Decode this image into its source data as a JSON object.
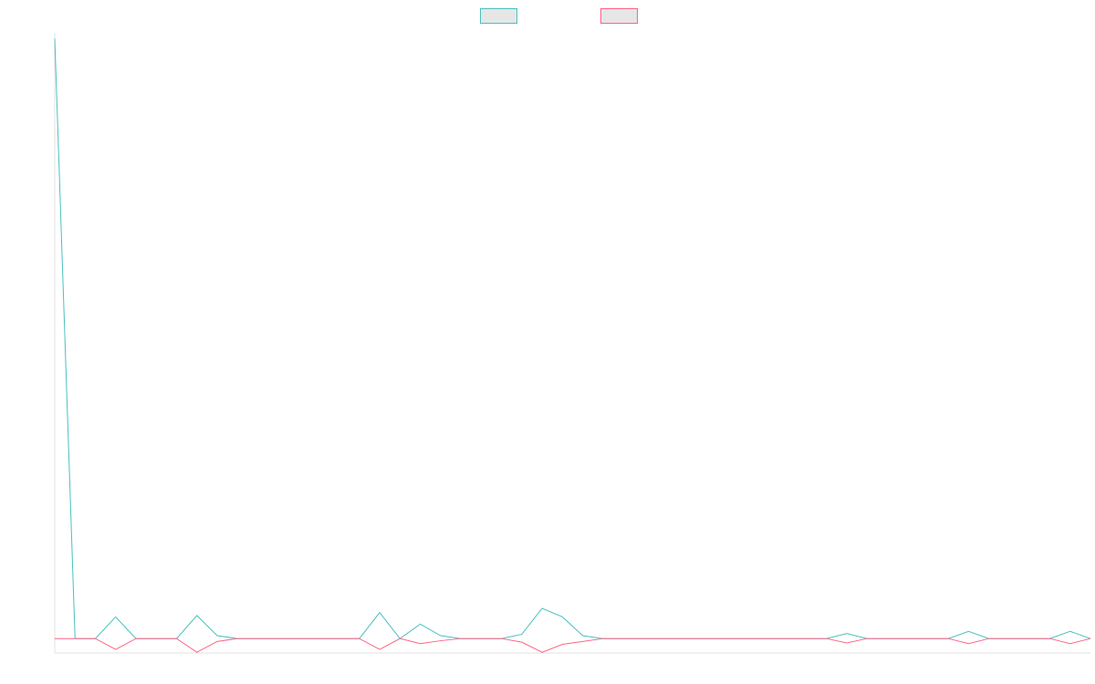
{
  "chart_data": {
    "type": "line",
    "title": "",
    "xlabel": "",
    "ylabel": "",
    "grid": false,
    "legend": "top-center",
    "x": [
      0,
      1,
      2,
      3,
      4,
      5,
      6,
      7,
      8,
      9,
      10,
      11,
      12,
      13,
      14,
      15,
      16,
      17,
      18,
      19,
      20,
      21,
      22,
      23,
      24,
      25,
      26,
      27,
      28,
      29,
      30,
      31,
      32,
      33,
      34,
      35,
      36,
      37,
      38,
      39,
      40,
      41,
      42,
      43,
      44,
      45,
      46,
      47,
      48,
      49,
      50,
      51
    ],
    "ylim": [
      -1.0,
      42.0
    ],
    "series": [
      {
        "name": "",
        "color": "#4bc0c0",
        "fill": "#e6e6e6",
        "values": [
          41.6,
          0,
          0,
          1.5,
          0,
          0,
          0,
          1.6,
          0.2,
          0,
          0,
          0,
          0,
          0,
          0,
          0,
          1.8,
          0,
          1.0,
          0.2,
          0,
          0,
          0,
          0.3,
          2.1,
          1.5,
          0.2,
          0,
          0,
          0,
          0,
          0,
          0,
          0,
          0,
          0,
          0,
          0,
          0,
          0.35,
          0,
          0,
          0,
          0,
          0,
          0.5,
          0,
          0,
          0,
          0,
          0.5,
          0
        ]
      },
      {
        "name": "",
        "color": "#ff6384",
        "fill": "#e6e6e6",
        "values": [
          0,
          0,
          0,
          -0.75,
          0,
          0,
          0,
          -0.95,
          -0.2,
          0,
          0,
          0,
          0,
          0,
          0,
          0,
          -0.75,
          0,
          -0.35,
          -0.15,
          0,
          0,
          0,
          -0.25,
          -0.95,
          -0.4,
          -0.2,
          0,
          0,
          0,
          0,
          0,
          0,
          0,
          0,
          0,
          0,
          0,
          0,
          -0.3,
          0,
          0,
          0,
          0,
          0,
          -0.35,
          0,
          0,
          0,
          0,
          -0.35,
          0
        ]
      }
    ]
  }
}
